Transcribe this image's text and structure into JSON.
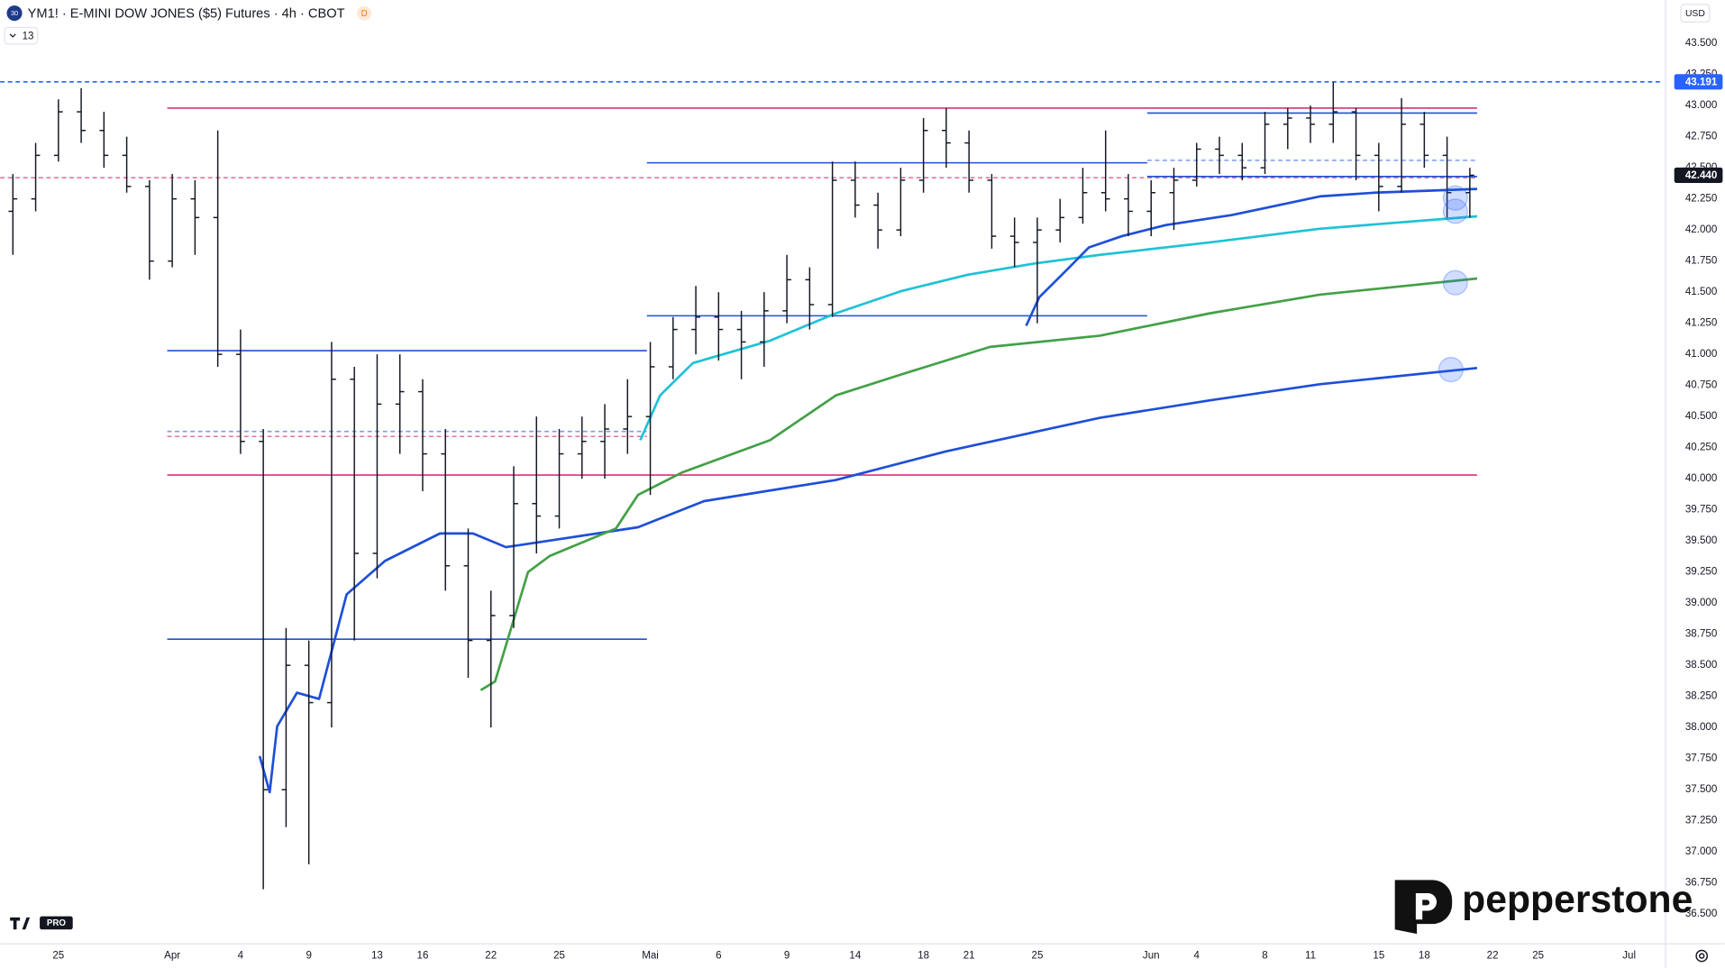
{
  "ui": {
    "badge": "30",
    "flag": "D",
    "indicator_toggle": "13",
    "currency": "USD",
    "brand": "pepperstone",
    "tv_badge": "PRO"
  },
  "chart_data": {
    "type": "ohlc",
    "title": "YM1! · E-MINI DOW JONES ($5) Futures · 4h · CBOT",
    "bar_color": "#131722",
    "grid": false,
    "x": [
      -2,
      -1,
      0,
      1,
      2,
      3,
      4,
      5,
      6,
      7,
      8,
      9,
      10,
      11,
      12,
      13,
      14,
      15,
      16,
      17,
      18,
      19,
      20,
      21,
      22,
      23,
      24,
      25,
      26,
      27,
      28,
      29,
      30,
      31,
      32,
      33,
      34,
      35,
      36,
      37,
      38,
      39,
      40,
      41,
      42,
      43,
      44,
      45,
      46,
      47,
      48,
      49,
      50,
      51,
      52,
      53,
      54,
      55,
      56,
      57,
      58,
      59,
      60,
      61,
      62
    ],
    "open": [
      42150,
      42250,
      42600,
      42950,
      42800,
      42600,
      42350,
      41750,
      42250,
      42100,
      41000,
      40300,
      37500,
      38500,
      38200,
      40800,
      39400,
      40600,
      40700,
      40200,
      39300,
      38700,
      38900,
      39800,
      39700,
      40200,
      40300,
      40400,
      40500,
      40900,
      41200,
      41300,
      41200,
      41100,
      41350,
      41600,
      41400,
      42400,
      42200,
      42000,
      42400,
      42800,
      42700,
      42400,
      41950,
      41900,
      42000,
      42100,
      42300,
      42250,
      42150,
      42300,
      42400,
      42650,
      42600,
      42500,
      42850,
      42900,
      42850,
      42950,
      42600,
      42350,
      42850,
      42600,
      42300
    ],
    "high": [
      42450,
      42700,
      43050,
      43140,
      42950,
      42750,
      42400,
      42450,
      42400,
      42800,
      41200,
      40400,
      38800,
      38700,
      41100,
      40900,
      41000,
      41000,
      40800,
      40400,
      39600,
      39100,
      40100,
      40500,
      40400,
      40500,
      40600,
      40800,
      41100,
      41300,
      41550,
      41500,
      41350,
      41500,
      41800,
      41700,
      42550,
      42550,
      42300,
      42500,
      42900,
      42980,
      42800,
      42450,
      42100,
      42100,
      42250,
      42500,
      42800,
      42450,
      42400,
      42500,
      42700,
      42750,
      42700,
      42950,
      42980,
      43000,
      43190,
      42980,
      42700,
      43060,
      42950,
      42750,
      42500
    ],
    "low": [
      41800,
      42150,
      42550,
      42700,
      42500,
      42300,
      41600,
      41700,
      41800,
      40900,
      40200,
      36700,
      37200,
      36900,
      38000,
      38700,
      39200,
      40200,
      39900,
      39100,
      38400,
      38000,
      38800,
      39400,
      39600,
      40000,
      40000,
      40200,
      39870,
      40800,
      41000,
      40950,
      40800,
      40900,
      41250,
      41200,
      41300,
      42100,
      41850,
      41950,
      42300,
      42500,
      42300,
      41850,
      41700,
      41250,
      41900,
      42050,
      42150,
      41950,
      41950,
      42000,
      42350,
      42450,
      42400,
      42450,
      42650,
      42700,
      42700,
      42400,
      42150,
      42300,
      42500,
      42100,
      42100
    ],
    "close": [
      42250,
      42600,
      42950,
      42800,
      42600,
      42350,
      41750,
      42250,
      42100,
      41000,
      40300,
      37500,
      38500,
      38200,
      40800,
      39400,
      40600,
      40700,
      40200,
      39300,
      38700,
      38900,
      39800,
      39700,
      40200,
      40300,
      40400,
      40500,
      40900,
      41200,
      41300,
      41200,
      41100,
      41350,
      41600,
      41400,
      42400,
      42200,
      42000,
      42400,
      42800,
      42700,
      42400,
      41950,
      41900,
      42000,
      42100,
      42300,
      42250,
      42150,
      42300,
      42400,
      42650,
      42600,
      42500,
      42850,
      42900,
      42850,
      42950,
      42600,
      42350,
      42850,
      42600,
      42300,
      42440
    ],
    "lines": [
      {
        "color": "#1e4fd8",
        "x": [
          8.84,
          9.28,
          9.61,
          10.48,
          11.45,
          12.66,
          14.35,
          16.76,
          18.21,
          19.66,
          22.56,
          25.46,
          28.36,
          34.15,
          38.99,
          45.75,
          50.58,
          55.41,
          62.32
        ],
        "values": [
          37770,
          37480,
          38010,
          38280,
          38230,
          39070,
          39340,
          39560,
          39560,
          39450,
          39530,
          39610,
          39820,
          39990,
          40220,
          40490,
          40630,
          40760,
          40890
        ]
      },
      {
        "color": "#43a047",
        "x": [
          18.55,
          19.18,
          20.63,
          21.59,
          24.49,
          25.46,
          27.39,
          31.26,
          34.15,
          37.05,
          40.92,
          45.75,
          50.58,
          55.41,
          62.32
        ],
        "values": [
          38300,
          38370,
          39250,
          39380,
          39600,
          39870,
          40050,
          40310,
          40670,
          40840,
          41060,
          41150,
          41330,
          41480,
          41610
        ]
      },
      {
        "color": "#1ec2d6",
        "x": [
          25.56,
          26.43,
          27.87,
          31.26,
          34.15,
          37.05,
          39.95,
          42.85,
          45.75,
          50.58,
          55.41,
          62.32
        ],
        "values": [
          40310,
          40670,
          40930,
          41110,
          41330,
          41510,
          41640,
          41730,
          41800,
          41900,
          42010,
          42110
        ]
      },
      {
        "color": "#1e4fd8",
        "x": [
          42.51,
          43.09,
          44.3,
          45.27,
          46.71,
          48.65,
          51.55,
          55.41,
          57.83,
          62.32
        ],
        "values": [
          41230,
          41460,
          41680,
          41860,
          41950,
          42040,
          42120,
          42270,
          42300,
          42330
        ]
      }
    ],
    "levels": [
      {
        "value": 42980,
        "x": [
          4.78,
          62.32
        ],
        "color": "#d6337a",
        "dash": false
      },
      {
        "value": 40030,
        "x": [
          4.78,
          62.32
        ],
        "color": "#d6337a",
        "dash": false
      },
      {
        "value": 42420,
        "x": [
          -2.56,
          62.32
        ],
        "color": "#e57399",
        "dash": true
      },
      {
        "value": 42540,
        "x": [
          25.85,
          47.83
        ],
        "color": "#1e4fd8",
        "dash": false
      },
      {
        "value": 41310,
        "x": [
          25.85,
          47.83
        ],
        "color": "#1e4fd8",
        "dash": false
      },
      {
        "value": 41030,
        "x": [
          4.78,
          25.85
        ],
        "color": "#1e4fd8",
        "dash": false
      },
      {
        "value": 38710,
        "x": [
          4.78,
          25.85
        ],
        "color": "#1e4fd8",
        "dash": false
      },
      {
        "value": 42940,
        "x": [
          47.83,
          62.32
        ],
        "color": "#1e4fd8",
        "dash": false
      },
      {
        "value": 42430,
        "x": [
          47.83,
          62.32
        ],
        "color": "#1e4fd8",
        "dash": false
      },
      {
        "value": 42560,
        "x": [
          47.83,
          62.32
        ],
        "color": "#7b9cf0",
        "dash": true
      },
      {
        "value": 40380,
        "x": [
          4.78,
          25.85
        ],
        "color": "#7b9cf0",
        "dash": true
      },
      {
        "value": 40340,
        "x": [
          4.78,
          25.85
        ],
        "color": "#e57399",
        "dash": true
      },
      {
        "value": 43191,
        "x": [
          -2.56,
          70.4
        ],
        "color": "#2962ff",
        "dash": true
      }
    ],
    "price_labels": [
      {
        "value": 43191,
        "label": "43.191",
        "color": "#2962ff"
      },
      {
        "value": 42440,
        "label": "42.440",
        "color": "#131722"
      }
    ],
    "xlim": [
      -2.56,
      70.4
    ],
    "xticks": [
      {
        "value": 0,
        "label": "25"
      },
      {
        "value": 5,
        "label": "Apr"
      },
      {
        "value": 8,
        "label": "4"
      },
      {
        "value": 11,
        "label": "9"
      },
      {
        "value": 14,
        "label": "13"
      },
      {
        "value": 16,
        "label": "16"
      },
      {
        "value": 19,
        "label": "22"
      },
      {
        "value": 22,
        "label": "25"
      },
      {
        "value": 26,
        "label": "Mai"
      },
      {
        "value": 29,
        "label": "6"
      },
      {
        "value": 32,
        "label": "9"
      },
      {
        "value": 35,
        "label": "14"
      },
      {
        "value": 38,
        "label": "18"
      },
      {
        "value": 40,
        "label": "21"
      },
      {
        "value": 43,
        "label": "25"
      },
      {
        "value": 48,
        "label": "Jun"
      },
      {
        "value": 50,
        "label": "4"
      },
      {
        "value": 53,
        "label": "8"
      },
      {
        "value": 55,
        "label": "11"
      },
      {
        "value": 58,
        "label": "15"
      },
      {
        "value": 60,
        "label": "18"
      },
      {
        "value": 63,
        "label": "22"
      },
      {
        "value": 65,
        "label": "25"
      },
      {
        "value": 69,
        "label": "Jul"
      }
    ],
    "ylim": [
      36261,
      43849
    ],
    "yticks": [
      {
        "value": 36500,
        "label": "36.500"
      },
      {
        "value": 36750,
        "label": "36.750"
      },
      {
        "value": 37000,
        "label": "37.000"
      },
      {
        "value": 37250,
        "label": "37.250"
      },
      {
        "value": 37500,
        "label": "37.500"
      },
      {
        "value": 37750,
        "label": "37.750"
      },
      {
        "value": 38000,
        "label": "38.000"
      },
      {
        "value": 38250,
        "label": "38.250"
      },
      {
        "value": 38500,
        "label": "38.500"
      },
      {
        "value": 38750,
        "label": "38.750"
      },
      {
        "value": 39000,
        "label": "39.000"
      },
      {
        "value": 39250,
        "label": "39.250"
      },
      {
        "value": 39500,
        "label": "39.500"
      },
      {
        "value": 39750,
        "label": "39.750"
      },
      {
        "value": 40000,
        "label": "40.000"
      },
      {
        "value": 40250,
        "label": "40.250"
      },
      {
        "value": 40500,
        "label": "40.500"
      },
      {
        "value": 40750,
        "label": "40.750"
      },
      {
        "value": 41000,
        "label": "41.000"
      },
      {
        "value": 41250,
        "label": "41.250"
      },
      {
        "value": 41500,
        "label": "41.500"
      },
      {
        "value": 41750,
        "label": "41.750"
      },
      {
        "value": 42000,
        "label": "42.000"
      },
      {
        "value": 42250,
        "label": "42.250"
      },
      {
        "value": 42500,
        "label": "42.500"
      },
      {
        "value": 42750,
        "label": "42.750"
      },
      {
        "value": 43000,
        "label": "43.000"
      },
      {
        "value": 43250,
        "label": "43.250"
      },
      {
        "value": 43500,
        "label": "43.500"
      }
    ]
  }
}
